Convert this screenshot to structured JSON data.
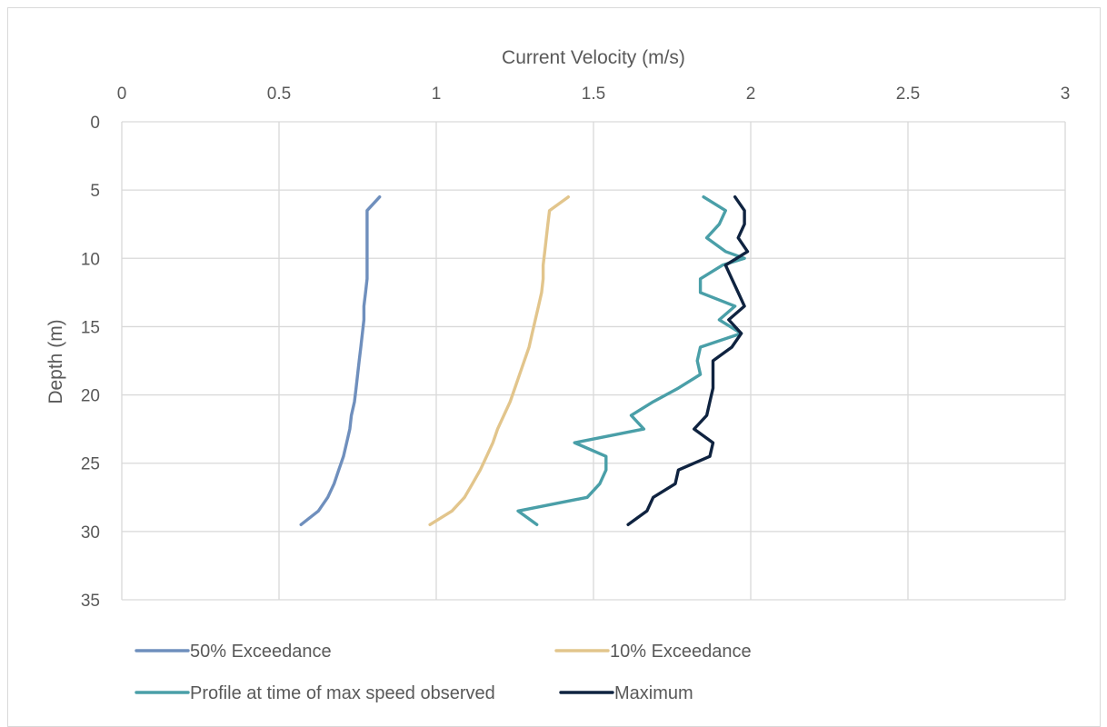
{
  "chart_data": {
    "type": "line",
    "title": "",
    "xlabel": "Current Velocity (m/s)",
    "ylabel": "Depth (m)",
    "x_axis_position": "top",
    "y_axis_reversed": true,
    "xlim": [
      0,
      3
    ],
    "ylim": [
      0,
      35
    ],
    "x_ticks": [
      "0",
      "0.5",
      "1",
      "1.5",
      "2",
      "2.5",
      "3"
    ],
    "y_ticks": [
      "0",
      "5",
      "10",
      "15",
      "20",
      "25",
      "30",
      "35"
    ],
    "grid": true,
    "legend_position": "bottom",
    "series": [
      {
        "name": "50% Exceedance",
        "color": "#6f8fbd",
        "points": [
          [
            0.82,
            5.5
          ],
          [
            0.78,
            6.5
          ],
          [
            0.78,
            7.5
          ],
          [
            0.78,
            8.5
          ],
          [
            0.78,
            9.5
          ],
          [
            0.78,
            10.5
          ],
          [
            0.78,
            11.5
          ],
          [
            0.775,
            12.5
          ],
          [
            0.77,
            13.5
          ],
          [
            0.77,
            14.5
          ],
          [
            0.765,
            15.5
          ],
          [
            0.76,
            16.5
          ],
          [
            0.755,
            17.5
          ],
          [
            0.75,
            18.5
          ],
          [
            0.745,
            19.5
          ],
          [
            0.74,
            20.5
          ],
          [
            0.73,
            21.5
          ],
          [
            0.725,
            22.5
          ],
          [
            0.715,
            23.5
          ],
          [
            0.705,
            24.5
          ],
          [
            0.69,
            25.5
          ],
          [
            0.675,
            26.5
          ],
          [
            0.655,
            27.5
          ],
          [
            0.625,
            28.5
          ],
          [
            0.57,
            29.5
          ]
        ]
      },
      {
        "name": "10% Exceedance",
        "color": "#e2c58c",
        "points": [
          [
            1.42,
            5.5
          ],
          [
            1.36,
            6.5
          ],
          [
            1.355,
            7.5
          ],
          [
            1.35,
            8.5
          ],
          [
            1.345,
            9.5
          ],
          [
            1.34,
            10.5
          ],
          [
            1.34,
            11.5
          ],
          [
            1.335,
            12.5
          ],
          [
            1.325,
            13.5
          ],
          [
            1.315,
            14.5
          ],
          [
            1.305,
            15.5
          ],
          [
            1.295,
            16.5
          ],
          [
            1.28,
            17.5
          ],
          [
            1.265,
            18.5
          ],
          [
            1.25,
            19.5
          ],
          [
            1.235,
            20.5
          ],
          [
            1.215,
            21.5
          ],
          [
            1.195,
            22.5
          ],
          [
            1.18,
            23.5
          ],
          [
            1.16,
            24.5
          ],
          [
            1.14,
            25.5
          ],
          [
            1.115,
            26.5
          ],
          [
            1.09,
            27.5
          ],
          [
            1.05,
            28.5
          ],
          [
            0.98,
            29.5
          ]
        ]
      },
      {
        "name": "Profile at time of max speed observed",
        "color": "#4a9fa8",
        "points": [
          [
            1.85,
            5.5
          ],
          [
            1.92,
            6.5
          ],
          [
            1.9,
            7.5
          ],
          [
            1.86,
            8.5
          ],
          [
            1.92,
            9.5
          ],
          [
            1.98,
            10
          ],
          [
            1.91,
            10.5
          ],
          [
            1.84,
            11.5
          ],
          [
            1.84,
            12.5
          ],
          [
            1.95,
            13.5
          ],
          [
            1.9,
            14.5
          ],
          [
            1.97,
            15.5
          ],
          [
            1.84,
            16.5
          ],
          [
            1.83,
            17.5
          ],
          [
            1.84,
            18.5
          ],
          [
            1.77,
            19.5
          ],
          [
            1.69,
            20.5
          ],
          [
            1.62,
            21.5
          ],
          [
            1.66,
            22.5
          ],
          [
            1.44,
            23.5
          ],
          [
            1.54,
            24.5
          ],
          [
            1.54,
            25.5
          ],
          [
            1.52,
            26.5
          ],
          [
            1.48,
            27.5
          ],
          [
            1.26,
            28.5
          ],
          [
            1.32,
            29.5
          ]
        ]
      },
      {
        "name": "Maximum",
        "color": "#0f2340",
        "points": [
          [
            1.95,
            5.5
          ],
          [
            1.98,
            6.5
          ],
          [
            1.98,
            7.5
          ],
          [
            1.96,
            8.5
          ],
          [
            1.99,
            9.5
          ],
          [
            1.92,
            10.5
          ],
          [
            1.94,
            11.5
          ],
          [
            1.96,
            12.5
          ],
          [
            1.98,
            13.5
          ],
          [
            1.93,
            14.5
          ],
          [
            1.97,
            15.5
          ],
          [
            1.94,
            16.5
          ],
          [
            1.88,
            17.5
          ],
          [
            1.88,
            18.5
          ],
          [
            1.88,
            19.5
          ],
          [
            1.87,
            20.5
          ],
          [
            1.86,
            21.5
          ],
          [
            1.82,
            22.5
          ],
          [
            1.88,
            23.5
          ],
          [
            1.87,
            24.5
          ],
          [
            1.77,
            25.5
          ],
          [
            1.76,
            26.5
          ],
          [
            1.69,
            27.5
          ],
          [
            1.67,
            28.5
          ],
          [
            1.61,
            29.5
          ]
        ]
      }
    ]
  }
}
